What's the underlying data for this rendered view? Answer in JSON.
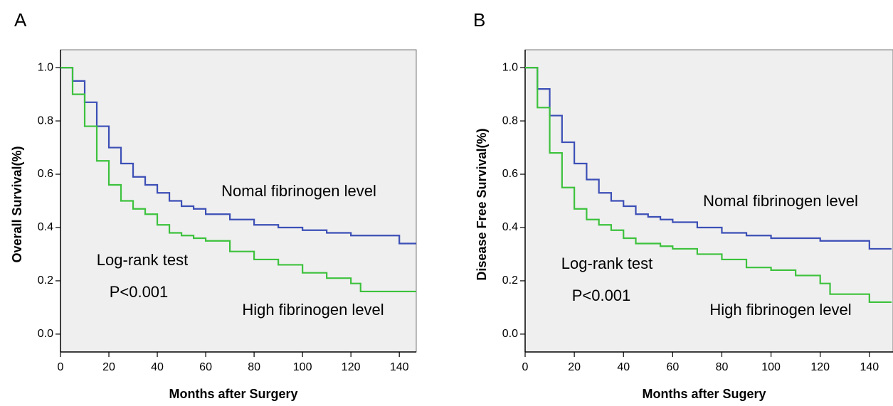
{
  "chart_data": [
    {
      "type": "step",
      "panel_label": "A",
      "x_label": "Months after Surgery",
      "y_label": "Overall Survival(%)",
      "annotations": [
        "Nomal fibrinogen level",
        "Log-rank test",
        "P<0.001",
        "High fibrinogen level"
      ],
      "x": [
        0,
        5,
        10,
        15,
        20,
        25,
        30,
        35,
        40,
        45,
        50,
        55,
        60,
        70,
        80,
        90,
        100,
        110,
        120,
        124,
        130,
        140,
        147
      ],
      "series": [
        {
          "color": "#3c4fb6",
          "values": [
            1.0,
            0.95,
            0.87,
            0.78,
            0.7,
            0.64,
            0.59,
            0.56,
            0.53,
            0.5,
            0.48,
            0.47,
            0.45,
            0.43,
            0.41,
            0.4,
            0.39,
            0.38,
            0.37,
            0.37,
            0.37,
            0.34,
            0.34
          ]
        },
        {
          "color": "#3dc23d",
          "values": [
            1.0,
            0.9,
            0.78,
            0.65,
            0.56,
            0.5,
            0.47,
            0.45,
            0.41,
            0.38,
            0.37,
            0.36,
            0.35,
            0.31,
            0.28,
            0.26,
            0.23,
            0.21,
            0.19,
            0.16,
            0.16,
            0.16,
            0.16
          ]
        }
      ],
      "xlim": [
        0,
        147
      ],
      "ylim": [
        -0.067,
        1.067
      ],
      "xticks": [
        0,
        20,
        40,
        60,
        80,
        100,
        120,
        140
      ],
      "yticks": [
        {
          "value": 0,
          "label": "0.0"
        },
        0.2,
        0.4,
        0.6,
        0.8,
        {
          "value": 1,
          "label": "1.0"
        }
      ],
      "background": "#efefef"
    },
    {
      "type": "step",
      "panel_label": "B",
      "x_label": "Months after Sugery",
      "y_label": "Disease Free Survival(%)",
      "annotations": [
        "Nomal fibrinogen level",
        "Log-rank test",
        "P<0.001",
        "High fibrinogen level"
      ],
      "x": [
        0,
        5,
        10,
        15,
        20,
        25,
        30,
        35,
        40,
        45,
        50,
        55,
        60,
        70,
        80,
        90,
        100,
        110,
        120,
        124,
        130,
        140,
        149
      ],
      "series": [
        {
          "color": "#3c4fb6",
          "values": [
            1.0,
            0.92,
            0.82,
            0.72,
            0.64,
            0.58,
            0.53,
            0.5,
            0.48,
            0.45,
            0.44,
            0.43,
            0.42,
            0.4,
            0.38,
            0.37,
            0.36,
            0.36,
            0.35,
            0.35,
            0.35,
            0.32,
            0.32
          ]
        },
        {
          "color": "#3dc23d",
          "values": [
            1.0,
            0.85,
            0.68,
            0.55,
            0.47,
            0.43,
            0.41,
            0.39,
            0.36,
            0.34,
            0.34,
            0.33,
            0.32,
            0.3,
            0.28,
            0.25,
            0.24,
            0.22,
            0.19,
            0.15,
            0.15,
            0.12,
            0.12
          ]
        }
      ],
      "xlim": [
        0,
        149.6
      ],
      "ylim": [
        -0.067,
        1.067
      ],
      "xticks": [
        0,
        20,
        40,
        60,
        80,
        100,
        120,
        140
      ],
      "yticks": [
        {
          "value": 0,
          "label": "0.0"
        },
        0.2,
        0.4,
        0.6,
        0.8,
        {
          "value": 1,
          "label": "1.0"
        }
      ],
      "background": "#efefef"
    }
  ]
}
